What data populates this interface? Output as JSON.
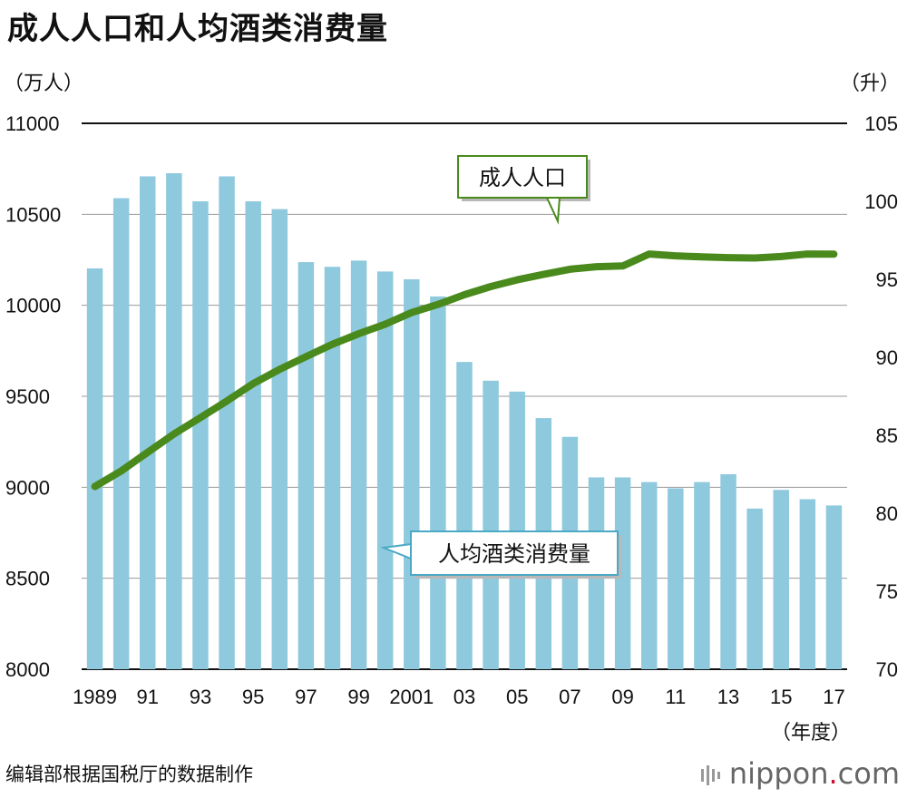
{
  "title": "成人人口和人均酒类消费量",
  "left_unit": "（万人）",
  "right_unit": "（升）",
  "x_suffix": "（年度）",
  "source": "编辑部根据国税厅的数据制作",
  "brand": {
    "name": "nippon",
    "dot": ".",
    "tld": "com"
  },
  "colors": {
    "bar": "#8ec9dd",
    "line": "#4a8a1c",
    "callout_border_green": "#4a8a1c",
    "callout_border_blue": "#4aa9c4"
  },
  "chart_data": {
    "type": "bar+line",
    "x": [
      "1989",
      "1990",
      "1991",
      "1992",
      "1993",
      "1994",
      "1995",
      "1996",
      "1997",
      "1998",
      "1999",
      "2000",
      "2001",
      "2002",
      "2003",
      "2004",
      "2005",
      "2006",
      "2007",
      "2008",
      "2009",
      "2010",
      "2011",
      "2012",
      "2013",
      "2014",
      "2015",
      "2016",
      "2017"
    ],
    "x_tick_labels": [
      "1989",
      "",
      "91",
      "",
      "93",
      "",
      "95",
      "",
      "97",
      "",
      "99",
      "",
      "2001",
      "",
      "03",
      "",
      "05",
      "",
      "07",
      "",
      "09",
      "",
      "11",
      "",
      "13",
      "",
      "15",
      "",
      "17"
    ],
    "left_axis": {
      "ylim": [
        8000,
        11000
      ],
      "ticks": [
        "8000",
        "8500",
        "9000",
        "9500",
        "10000",
        "10500",
        "11000"
      ]
    },
    "right_axis": {
      "ylim": [
        70,
        105
      ],
      "ticks": [
        "70",
        "75",
        "80",
        "85",
        "90",
        "95",
        "100",
        "105"
      ]
    },
    "series": [
      {
        "name": "人均酒类消费量",
        "type": "bar",
        "axis": "right",
        "values": [
          95.7,
          100.2,
          101.6,
          101.8,
          100.0,
          101.6,
          100.0,
          99.5,
          96.1,
          95.8,
          96.2,
          95.5,
          95.0,
          93.9,
          89.7,
          88.5,
          87.8,
          86.1,
          84.9,
          82.3,
          82.3,
          82.0,
          81.6,
          82.0,
          82.5,
          80.3,
          81.5,
          80.9,
          80.5
        ]
      },
      {
        "name": "成人人口",
        "type": "line",
        "axis": "left",
        "values": [
          9004,
          9090,
          9192,
          9293,
          9383,
          9474,
          9570,
          9648,
          9718,
          9786,
          9844,
          9896,
          9960,
          10005,
          10058,
          10103,
          10140,
          10170,
          10198,
          10212,
          10216,
          10282,
          10272,
          10266,
          10262,
          10260,
          10268,
          10282,
          10281
        ]
      }
    ]
  }
}
